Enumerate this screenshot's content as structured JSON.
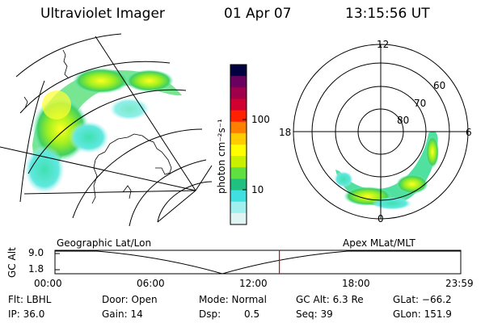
{
  "header": {
    "instrument": "Ultraviolet Imager",
    "date": "01 Apr 07",
    "time": "13:15:56 UT"
  },
  "colorbar": {
    "label": "photon cm⁻²s⁻¹",
    "ticks": [
      "100",
      "10"
    ],
    "colors": [
      "#000040",
      "#6a0060",
      "#a0004a",
      "#d00030",
      "#ff2000",
      "#ff8000",
      "#ffcc00",
      "#ffff00",
      "#c8f000",
      "#60e040",
      "#20c080",
      "#40e0e0",
      "#a0f0f0",
      "#e0f4f4"
    ]
  },
  "polar_plot": {
    "mlt_labels": [
      "12",
      "18",
      "6",
      "0"
    ],
    "lat_labels": [
      "60",
      "70",
      "80"
    ]
  },
  "timeline": {
    "left_label": "Geographic Lat/Lon",
    "right_label": "Apex MLat/MLT",
    "axis_title": "GC Alt",
    "y_ticks": [
      "9.0",
      "1.8"
    ],
    "x_ticks": [
      "00:00",
      "06:00",
      "12:00",
      "18:00",
      "23:59"
    ],
    "current_time_fraction": 0.553,
    "marker_color": "#e00000"
  },
  "info": {
    "flt": "Flt: LBHL",
    "ip": "IP: 36.0",
    "door": "Door: Open",
    "gain": "Gain: 14",
    "mode": "Mode: Normal",
    "dsp_label": "Dsp:",
    "dsp_value": "0.5",
    "gc_alt": "GC Alt: 6.3 Re",
    "seq": "Seq: 39",
    "glat": "GLat: −66.2",
    "glon": "GLon: 151.9"
  }
}
